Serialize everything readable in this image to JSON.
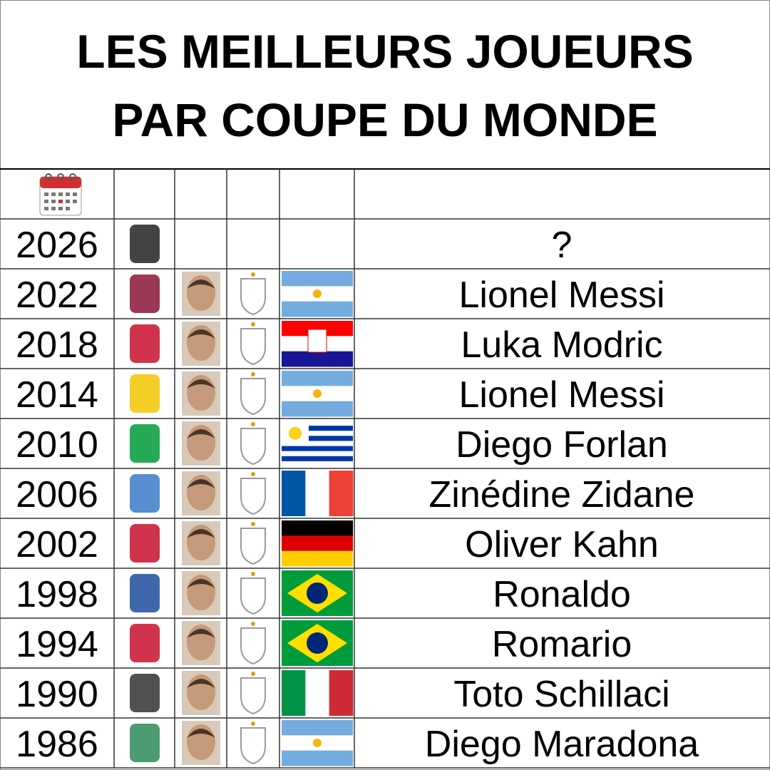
{
  "header": {
    "title_lines": [
      "LES MEILLEURS JOUEURS",
      "PAR COUPE DU MONDE"
    ]
  },
  "table": {
    "rows": [
      [
        "2026",
        "?"
      ],
      [
        "2022",
        "Lionel Messi"
      ],
      [
        "2018",
        "Luka Modric"
      ],
      [
        "2014",
        "Lionel Messi"
      ],
      [
        "2010",
        "Diego Forlan"
      ],
      [
        "2006",
        "Zinédine Zidane"
      ],
      [
        "2002",
        "Oliver Kahn"
      ],
      [
        "1998",
        "Ronaldo"
      ],
      [
        "1994",
        "Romario"
      ],
      [
        "1990",
        "Toto Schillaci"
      ],
      [
        "1986",
        "Diego Maradona"
      ]
    ]
  }
}
